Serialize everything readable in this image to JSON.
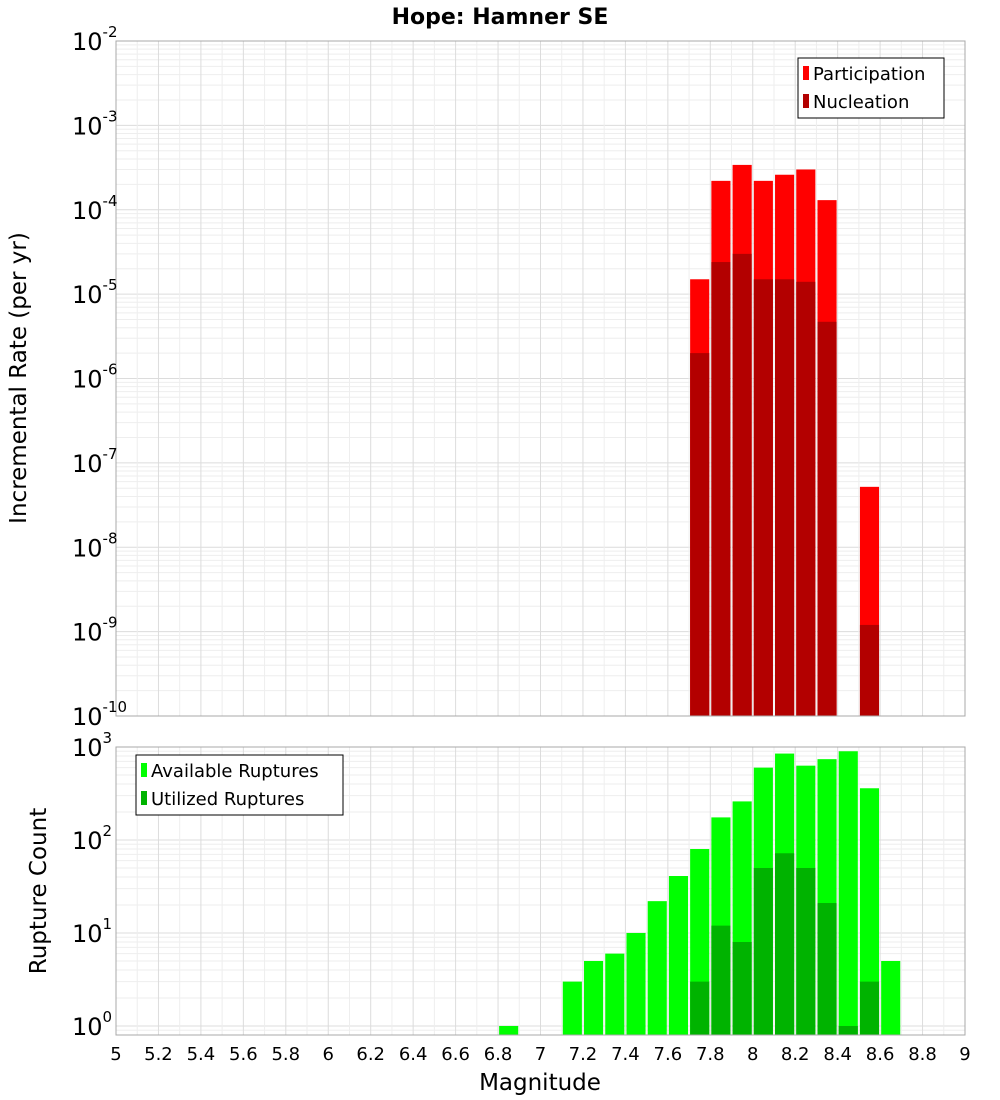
{
  "chart_data": {
    "title": "Hope: Hamner SE",
    "xlabel": "Magnitude",
    "xlim": [
      5,
      9
    ],
    "x_ticks": [
      "5",
      "5.2",
      "5.4",
      "5.6",
      "5.8",
      "6",
      "6.2",
      "6.4",
      "6.6",
      "6.8",
      "7",
      "7.2",
      "7.4",
      "7.6",
      "7.8",
      "8",
      "8.2",
      "8.4",
      "8.6",
      "8.8",
      "9"
    ],
    "grid": true,
    "panels": [
      {
        "type": "bar",
        "scale": "log",
        "ylabel": "Incremental Rate (per yr)",
        "ylim": [
          1e-10,
          0.01
        ],
        "y_tick_exponents": [
          "-10",
          "-9",
          "-8",
          "-7",
          "-6",
          "-5",
          "-4",
          "-3",
          "-2"
        ],
        "legend_position": "top-right",
        "series": [
          {
            "name": "Participation",
            "color": "#ff0000",
            "points": [
              {
                "x": 7.75,
                "y": 1.5e-05
              },
              {
                "x": 7.85,
                "y": 0.00022
              },
              {
                "x": 7.95,
                "y": 0.00034
              },
              {
                "x": 8.05,
                "y": 0.00022
              },
              {
                "x": 8.15,
                "y": 0.00026
              },
              {
                "x": 8.25,
                "y": 0.0003
              },
              {
                "x": 8.35,
                "y": 0.00013
              },
              {
                "x": 8.55,
                "y": 5.2e-08
              }
            ]
          },
          {
            "name": "Nucleation",
            "color": "#b30000",
            "points": [
              {
                "x": 7.75,
                "y": 2e-06
              },
              {
                "x": 7.85,
                "y": 2.4e-05
              },
              {
                "x": 7.95,
                "y": 3e-05
              },
              {
                "x": 8.05,
                "y": 1.5e-05
              },
              {
                "x": 8.15,
                "y": 1.5e-05
              },
              {
                "x": 8.25,
                "y": 1.4e-05
              },
              {
                "x": 8.35,
                "y": 4.7e-06
              },
              {
                "x": 8.55,
                "y": 1.2e-09
              }
            ]
          }
        ]
      },
      {
        "type": "bar",
        "scale": "log",
        "ylabel": "Rupture Count",
        "ylim": [
          0.8,
          1000
        ],
        "y_tick_exponents": [
          "0",
          "1",
          "2",
          "3"
        ],
        "legend_position": "top-left",
        "series": [
          {
            "name": "Available Ruptures",
            "color": "#00ff00",
            "points": [
              {
                "x": 6.85,
                "y": 1
              },
              {
                "x": 7.15,
                "y": 3
              },
              {
                "x": 7.25,
                "y": 5
              },
              {
                "x": 7.35,
                "y": 6
              },
              {
                "x": 7.45,
                "y": 10
              },
              {
                "x": 7.55,
                "y": 22
              },
              {
                "x": 7.65,
                "y": 41
              },
              {
                "x": 7.75,
                "y": 80
              },
              {
                "x": 7.85,
                "y": 175
              },
              {
                "x": 7.95,
                "y": 260
              },
              {
                "x": 8.05,
                "y": 600
              },
              {
                "x": 8.15,
                "y": 850
              },
              {
                "x": 8.25,
                "y": 630
              },
              {
                "x": 8.35,
                "y": 740
              },
              {
                "x": 8.45,
                "y": 900
              },
              {
                "x": 8.55,
                "y": 360
              },
              {
                "x": 8.65,
                "y": 5
              }
            ]
          },
          {
            "name": "Utilized Ruptures",
            "color": "#00b300",
            "points": [
              {
                "x": 7.75,
                "y": 3
              },
              {
                "x": 7.85,
                "y": 12
              },
              {
                "x": 7.95,
                "y": 8
              },
              {
                "x": 8.05,
                "y": 50
              },
              {
                "x": 8.15,
                "y": 72
              },
              {
                "x": 8.25,
                "y": 50
              },
              {
                "x": 8.35,
                "y": 21
              },
              {
                "x": 8.45,
                "y": 1
              },
              {
                "x": 8.55,
                "y": 3
              }
            ]
          }
        ]
      }
    ]
  }
}
